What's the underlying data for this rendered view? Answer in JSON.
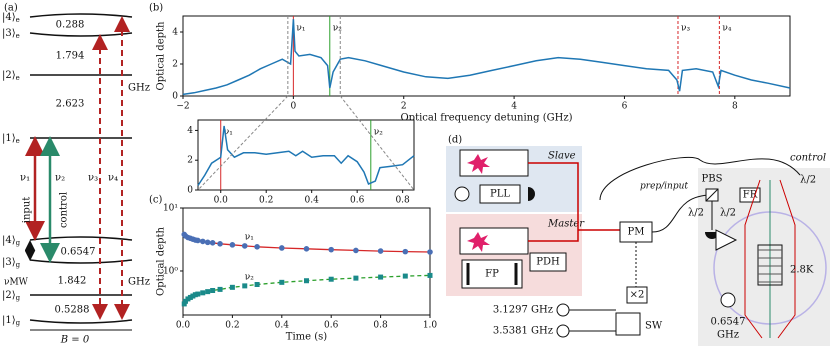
{
  "chart_data": [
    {
      "type": "line",
      "panel_label": "(b)",
      "xlabel": "Optical frequency detuning (GHz)",
      "ylabel": "Optical depth",
      "xlim": [
        -2,
        9
      ],
      "ylim": [
        0,
        5
      ],
      "xticks": [
        {
          "value": -2,
          "label": "−2"
        },
        0,
        2,
        4,
        6,
        8
      ],
      "yticks": [
        0,
        2,
        4
      ],
      "x": [
        -2,
        -1.8,
        -1.6,
        -1.4,
        -1.2,
        -1,
        -0.8,
        -0.6,
        -0.4,
        -0.2,
        -0.05,
        0,
        0.03,
        0.1,
        0.3,
        0.5,
        0.62,
        0.66,
        0.72,
        0.85,
        1,
        1.3,
        1.6,
        2,
        2.4,
        2.8,
        3.2,
        3.6,
        4,
        4.4,
        4.8,
        5.2,
        5.6,
        6,
        6.4,
        6.8,
        6.95,
        7,
        7.05,
        7.3,
        7.6,
        7.7,
        7.75,
        8,
        8.3,
        8.6,
        9
      ],
      "series": [
        {
          "color": "#1f77b4",
          "values": [
            0.1,
            0.2,
            0.35,
            0.5,
            0.7,
            1.0,
            1.3,
            1.7,
            2.0,
            2.3,
            2.0,
            4.8,
            2.8,
            2.5,
            2.6,
            2.4,
            1.9,
            0.5,
            1.5,
            2.3,
            2.4,
            2.2,
            1.9,
            1.5,
            1.2,
            1.1,
            1.3,
            1.6,
            1.9,
            2.2,
            2.4,
            2.3,
            2.1,
            1.9,
            1.7,
            1.6,
            1.0,
            0.3,
            1.6,
            1.7,
            1.5,
            0.6,
            1.6,
            1.3,
            1.0,
            0.8,
            0.5
          ]
        }
      ],
      "markers": [
        {
          "label": "ν₁",
          "x": 0,
          "color": "#d62728",
          "dashed": false
        },
        {
          "label": "ν₂",
          "x": 0.66,
          "color": "#2ca02c",
          "dashed": false
        },
        {
          "label": "ν₃",
          "x": 6.97,
          "color": "#d62728",
          "dashed": true
        },
        {
          "label": "ν₄",
          "x": 7.72,
          "color": "#d62728",
          "dashed": true
        }
      ]
    },
    {
      "type": "line",
      "xlim": [
        -0.1,
        0.85
      ],
      "ylim": [
        0,
        4.7
      ],
      "xticks": [
        {
          "value": 0,
          "label": "0.0"
        },
        0.2,
        0.4,
        0.6,
        0.8
      ],
      "yticks": [
        0,
        2,
        4
      ],
      "x": [
        -0.1,
        -0.07,
        -0.04,
        -0.01,
        0.0,
        0.015,
        0.03,
        0.06,
        0.1,
        0.15,
        0.2,
        0.25,
        0.3,
        0.33,
        0.36,
        0.4,
        0.45,
        0.5,
        0.53,
        0.56,
        0.6,
        0.63,
        0.65,
        0.68,
        0.7,
        0.75,
        0.8,
        0.85
      ],
      "series": [
        {
          "color": "#1f77b4",
          "values": [
            0.3,
            1.0,
            1.8,
            2.1,
            2.2,
            4.3,
            2.7,
            2.2,
            2.5,
            2.5,
            2.4,
            2.5,
            2.6,
            2.3,
            2.6,
            2.2,
            2.3,
            2.3,
            1.8,
            2.3,
            1.9,
            1.2,
            0.4,
            0.6,
            1.5,
            1.6,
            1.7,
            2.3
          ]
        }
      ],
      "markers": [
        {
          "label": "ν₁",
          "x": 0,
          "color": "#d62728",
          "dashed": false
        },
        {
          "label": "ν₂",
          "x": 0.66,
          "color": "#2ca02c",
          "dashed": false
        }
      ]
    },
    {
      "type": "scatter",
      "panel_label": "(c)",
      "xlabel": "Time (s)",
      "ylabel": "Optical depth",
      "log_y": true,
      "xlim": [
        0,
        1
      ],
      "ylim": [
        0.2,
        10
      ],
      "xticks": [
        {
          "value": 0,
          "label": "0.0"
        },
        0.2,
        0.4,
        0.6,
        0.8,
        {
          "value": 1,
          "label": "1.0"
        }
      ],
      "yticks": [
        {
          "value": 1,
          "label": "10⁰"
        },
        {
          "value": 10,
          "label": "10¹"
        }
      ],
      "x": [
        0.005,
        0.01,
        0.02,
        0.03,
        0.04,
        0.05,
        0.06,
        0.08,
        0.1,
        0.12,
        0.15,
        0.2,
        0.25,
        0.3,
        0.4,
        0.5,
        0.6,
        0.7,
        0.8,
        0.9,
        1.0
      ],
      "series": [
        {
          "name": "ν₁",
          "color": "#4a6fb5",
          "marker": "circle",
          "fit_color": "#d62728",
          "fit_dashed": false,
          "values": [
            3.8,
            3.6,
            3.4,
            3.3,
            3.2,
            3.1,
            3.05,
            2.95,
            2.85,
            2.8,
            2.7,
            2.6,
            2.5,
            2.42,
            2.32,
            2.25,
            2.18,
            2.12,
            2.07,
            2.03,
            2.0
          ]
        },
        {
          "name": "ν₂",
          "color": "#1a8a8a",
          "marker": "square",
          "fit_color": "#2ca02c",
          "fit_dashed": true,
          "values": [
            0.3,
            0.33,
            0.36,
            0.38,
            0.4,
            0.42,
            0.43,
            0.45,
            0.47,
            0.49,
            0.51,
            0.55,
            0.58,
            0.61,
            0.66,
            0.7,
            0.74,
            0.77,
            0.8,
            0.83,
            0.85
          ]
        }
      ]
    }
  ],
  "diagram_a": {
    "panel_label": "(a)",
    "levels": [
      {
        "ket": "|4⟩",
        "sub": "e"
      },
      {
        "ket": "|3⟩",
        "sub": "e"
      },
      {
        "ket": "|2⟩",
        "sub": "e"
      },
      {
        "ket": "|1⟩",
        "sub": "e"
      },
      {
        "ket": "|4⟩",
        "sub": "g"
      },
      {
        "ket": "|3⟩",
        "sub": "g"
      },
      {
        "ket": "|2⟩",
        "sub": "g"
      },
      {
        "ket": "|1⟩",
        "sub": "g"
      }
    ],
    "gaps": [
      0.288,
      1.794,
      2.623,
      0.6547,
      1.842,
      0.5288
    ],
    "units": [
      "GHz",
      "GHz"
    ],
    "transitions": {
      "nu1": "ν₁",
      "nu2": "ν₂",
      "nu3": "ν₃",
      "nu4": "ν₄",
      "mw": "νMW",
      "input": "input",
      "control": "control"
    },
    "field": "B = 0"
  },
  "diagram_d": {
    "panel_label": "(d)",
    "slave": "Slave",
    "master": "Master",
    "pll": "PLL",
    "pdh": "PDH",
    "fp": "FP",
    "pm": "PM",
    "prep": "prep/input",
    "doubler": "×2",
    "sw": "SW",
    "f1": "3.1297 GHz",
    "f2": "3.5381 GHz",
    "pbs": "PBS",
    "fr": "FR",
    "hw1": "λ/2",
    "hw2": "λ/2",
    "hw3": "λ/2",
    "control": "control",
    "temp": "2.8K",
    "mw_freq": "0.6547",
    "mw_unit": "GHz"
  }
}
